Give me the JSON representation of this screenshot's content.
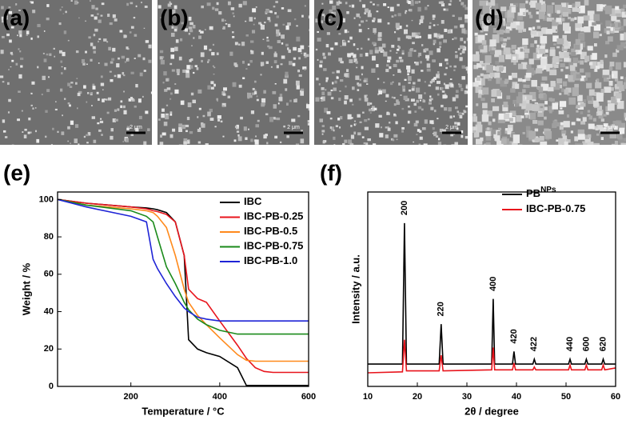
{
  "panels": [
    {
      "label": "(a)",
      "scale_bar": "2 μm"
    },
    {
      "label": "(b)",
      "scale_bar": "2 μm"
    },
    {
      "label": "(c)",
      "scale_bar": "2 μm"
    },
    {
      "label": "(d)",
      "scale_bar": "2 μm"
    }
  ],
  "chart_data": [
    {
      "type": "line",
      "panel_label": "(e)",
      "xlabel": "Temperature / °C",
      "ylabel": "Weight / %",
      "x": [
        35,
        100,
        200,
        235,
        250,
        260,
        280,
        300,
        320,
        330,
        350,
        370,
        400,
        440,
        460,
        480,
        500,
        520,
        600
      ],
      "series": [
        {
          "name": "IBC",
          "color": "#000000",
          "values": [
            100,
            98,
            96,
            95.5,
            95,
            94.5,
            93,
            88,
            70,
            25,
            20,
            18,
            16,
            10,
            0.5,
            0.5,
            0.5,
            0.5,
            0.5
          ]
        },
        {
          "name": "IBC-PB-0.25",
          "color": "#e8141c",
          "values": [
            100,
            98,
            96,
            95,
            94,
            93.5,
            92,
            88,
            70,
            52,
            47,
            45,
            35,
            22,
            15,
            10,
            8,
            7.5,
            7.5
          ]
        },
        {
          "name": "IBC-PB-0.5",
          "color": "#ff8a1c",
          "values": [
            100,
            97,
            95,
            94,
            93,
            91,
            85,
            70,
            52,
            45,
            38,
            33,
            26,
            17,
            14,
            13.5,
            13.5,
            13.5,
            13.5
          ]
        },
        {
          "name": "IBC-PB-0.75",
          "color": "#1a8a1a",
          "values": [
            100,
            97,
            94,
            91,
            88,
            80,
            64,
            55,
            45,
            41,
            36,
            33,
            30,
            28,
            28,
            28,
            28,
            28,
            28
          ]
        },
        {
          "name": "IBC-PB-1.0",
          "color": "#1f24d6",
          "values": [
            100,
            96,
            91,
            88,
            68,
            63,
            55,
            48,
            42,
            40,
            37,
            36,
            35,
            35,
            35,
            35,
            35,
            35,
            35
          ]
        }
      ],
      "xlim": [
        35,
        600
      ],
      "xticks": [
        200,
        400,
        600
      ],
      "ylim": [
        0,
        104
      ],
      "yticks": [
        0,
        20,
        40,
        60,
        80,
        100
      ]
    },
    {
      "type": "line",
      "panel_label": "(f)",
      "xlabel": "2θ / degree",
      "ylabel": "Intensity / a.u.",
      "x": [
        10,
        17.0,
        17.4,
        17.8,
        24.4,
        24.8,
        25.2,
        35.0,
        35.3,
        35.6,
        39.2,
        39.5,
        39.8,
        43.3,
        43.6,
        43.9,
        50.5,
        50.8,
        51.1,
        53.8,
        54.1,
        54.4,
        57.2,
        57.5,
        57.8,
        60
      ],
      "series": [
        {
          "name": "PB",
          "name_superscript": "NPs",
          "color": "#000000",
          "values": [
            11.5,
            11.5,
            84,
            11.5,
            11.5,
            32,
            11.5,
            11.5,
            45,
            11.5,
            11.5,
            18,
            11.5,
            11.5,
            14,
            11.5,
            11.5,
            14,
            11.5,
            11.5,
            14,
            11.5,
            11.5,
            14,
            11.5,
            11.5
          ]
        },
        {
          "name": "IBC-PB-0.75",
          "color": "#e8141c",
          "values": [
            7,
            7.5,
            24,
            8,
            8,
            16,
            8,
            8.5,
            20,
            8.5,
            8.5,
            12,
            8.5,
            8.5,
            10,
            8.5,
            8.5,
            11,
            8.5,
            8.5,
            11,
            8.5,
            8.5,
            11,
            8.5,
            9.5
          ]
        }
      ],
      "peak_labels": [
        {
          "x": 17.4,
          "y": 88,
          "label": "200"
        },
        {
          "x": 24.8,
          "y": 36,
          "label": "220"
        },
        {
          "x": 35.3,
          "y": 49,
          "label": "400"
        },
        {
          "x": 39.5,
          "y": 22,
          "label": "420"
        },
        {
          "x": 43.6,
          "y": 18,
          "label": "422"
        },
        {
          "x": 50.8,
          "y": 18,
          "label": "440"
        },
        {
          "x": 54.1,
          "y": 18,
          "label": "600"
        },
        {
          "x": 57.5,
          "y": 18,
          "label": "620"
        }
      ],
      "xlim": [
        10,
        60
      ],
      "xticks": [
        10,
        20,
        30,
        40,
        50,
        60
      ],
      "ylim": [
        0,
        100
      ]
    }
  ]
}
